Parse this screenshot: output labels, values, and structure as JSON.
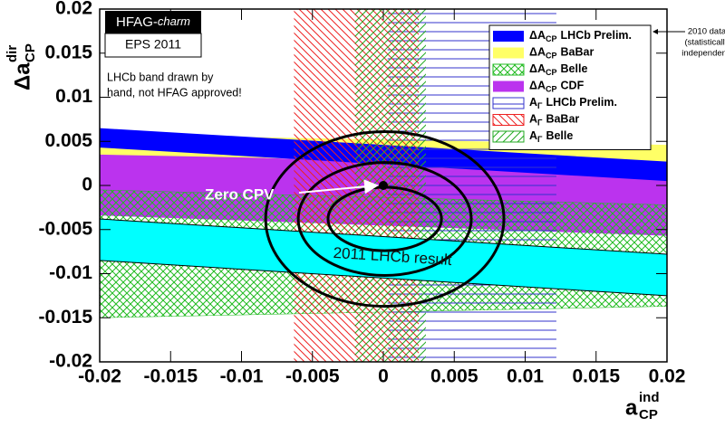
{
  "chart_data": {
    "type": "band",
    "title_box": {
      "prefix": "HFAG-",
      "italic": "charm"
    },
    "subtitle": "EPS 2011",
    "note": [
      "LHCb band drawn by",
      "hand, not HFAG approved!"
    ],
    "x_label": {
      "symbol": "a",
      "superscript": "ind",
      "subscript": "CP"
    },
    "y_label": {
      "symbol": "Δa",
      "superscript": "dir",
      "subscript": "CP"
    },
    "xlim": [
      -0.02,
      0.02
    ],
    "ylim": [
      -0.02,
      0.02
    ],
    "xticks": [
      -0.02,
      -0.015,
      -0.01,
      -0.005,
      0,
      0.005,
      0.01,
      0.015,
      0.02
    ],
    "yticks": [
      -0.02,
      -0.015,
      -0.01,
      -0.005,
      0,
      0.005,
      0.01,
      0.015,
      0.02
    ],
    "legend": "upper right",
    "series": [
      {
        "symbol": "ΔA",
        "subscript": "CP",
        "name": "LHCb Prelim.",
        "color": "#0000ff",
        "pattern": "solid",
        "x": [
          -0.02,
          0.02
        ],
        "upper": [
          0.0065,
          0.0027
        ],
        "lower": [
          0.0043,
          0.0005
        ]
      },
      {
        "symbol": "ΔA",
        "subscript": "CP",
        "name": "BaBar",
        "color": "#ffff66",
        "pattern": "solid",
        "x": [
          -0.02,
          0.02
        ],
        "upper": [
          0.0058,
          0.0046
        ],
        "lower": [
          0.0035,
          0.0022
        ]
      },
      {
        "symbol": "ΔA",
        "subscript": "CP",
        "name": "Belle",
        "color": "#22bb22",
        "pattern": "crosshatch",
        "x": [
          -0.02,
          0.02
        ],
        "upper": [
          -0.0005,
          -0.0022
        ],
        "lower": [
          -0.015,
          -0.0137
        ]
      },
      {
        "symbol": "ΔA",
        "subscript": "CP",
        "name": "CDF",
        "color": "#bb33ee",
        "pattern": "solid",
        "x": [
          -0.02,
          0.02
        ],
        "upper": [
          0.0038,
          0.0015
        ],
        "lower": [
          -0.0034,
          -0.0057
        ]
      },
      {
        "symbol": "A",
        "subscript": "Γ",
        "name": "LHCb Prelim.",
        "color": "#3333cc",
        "pattern": "horizontal",
        "xrange": [
          0.0003,
          0.0122
        ]
      },
      {
        "symbol": "A",
        "subscript": "Γ",
        "name": "BaBar",
        "color": "#ee2222",
        "pattern": "diagonal-down",
        "xrange": [
          -0.0063,
          0.0025
        ]
      },
      {
        "symbol": "A",
        "subscript": "Γ",
        "name": "Belle",
        "color": "#22aa22",
        "pattern": "diagonal-up",
        "xrange": [
          -0.002,
          0.003
        ]
      }
    ],
    "result": {
      "label": "2011 LHCb result",
      "color": "#00ffff",
      "x": [
        -0.02,
        0.02
      ],
      "upper": [
        -0.0038,
        -0.0078
      ],
      "lower": [
        -0.0085,
        -0.0125
      ]
    },
    "contours": [
      {
        "cx": 0.0001,
        "cy": -0.0038,
        "rx": 0.004,
        "ry": 0.0036
      },
      {
        "cx": 0.0001,
        "cy": -0.0038,
        "rx": 0.0061,
        "ry": 0.0064
      },
      {
        "cx": 0.0001,
        "cy": -0.0038,
        "rx": 0.0084,
        "ry": 0.0099
      }
    ],
    "zero_point": {
      "label": "Zero CPV",
      "x": 0,
      "y": 0
    },
    "side_note": [
      "2010 data",
      "(statistically",
      "independent)"
    ]
  }
}
